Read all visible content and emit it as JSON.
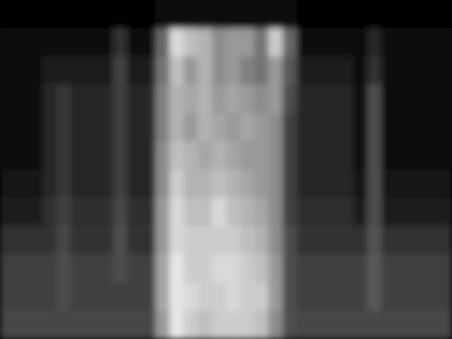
{
  "chart_data": {
    "type": "heatmap",
    "tick_labels": false,
    "zlim": [
      0,
      1
    ],
    "cells": [
      [
        0.02,
        0.02,
        0.02,
        0.02,
        0.02,
        0.02,
        0.02,
        0.02,
        0.02,
        0.02,
        0.02,
        0.05,
        0.05,
        0.05,
        0.05,
        0.05,
        0.05,
        0.05,
        0.05,
        0.05,
        0.05,
        0.02,
        0.02,
        0.02,
        0.02,
        0.02,
        0.02,
        0.02,
        0.02,
        0.02,
        0.02,
        0.02
      ],
      [
        0.03,
        0.03,
        0.03,
        0.03,
        0.03,
        0.03,
        0.03,
        0.03,
        0.2,
        0.03,
        0.03,
        0.4,
        0.85,
        0.75,
        0.7,
        0.55,
        0.6,
        0.6,
        0.45,
        0.8,
        0.4,
        0.03,
        0.03,
        0.03,
        0.03,
        0.03,
        0.15,
        0.03,
        0.03,
        0.03,
        0.03,
        0.03
      ],
      [
        0.05,
        0.05,
        0.05,
        0.1,
        0.1,
        0.1,
        0.1,
        0.1,
        0.25,
        0.1,
        0.1,
        0.45,
        0.75,
        0.6,
        0.7,
        0.55,
        0.6,
        0.5,
        0.45,
        0.6,
        0.35,
        0.1,
        0.1,
        0.1,
        0.1,
        0.05,
        0.2,
        0.05,
        0.05,
        0.05,
        0.05,
        0.05
      ],
      [
        0.06,
        0.06,
        0.06,
        0.15,
        0.22,
        0.15,
        0.15,
        0.15,
        0.25,
        0.15,
        0.15,
        0.5,
        0.7,
        0.65,
        0.7,
        0.6,
        0.65,
        0.6,
        0.55,
        0.6,
        0.3,
        0.15,
        0.15,
        0.15,
        0.15,
        0.06,
        0.3,
        0.06,
        0.06,
        0.06,
        0.06,
        0.06
      ],
      [
        0.06,
        0.06,
        0.06,
        0.15,
        0.22,
        0.15,
        0.15,
        0.15,
        0.25,
        0.15,
        0.15,
        0.5,
        0.7,
        0.6,
        0.7,
        0.65,
        0.6,
        0.65,
        0.6,
        0.55,
        0.25,
        0.15,
        0.15,
        0.15,
        0.15,
        0.06,
        0.3,
        0.06,
        0.06,
        0.06,
        0.06,
        0.06
      ],
      [
        0.06,
        0.06,
        0.06,
        0.15,
        0.22,
        0.15,
        0.15,
        0.15,
        0.25,
        0.15,
        0.15,
        0.55,
        0.75,
        0.7,
        0.65,
        0.7,
        0.65,
        0.6,
        0.6,
        0.55,
        0.25,
        0.15,
        0.15,
        0.15,
        0.15,
        0.06,
        0.3,
        0.06,
        0.06,
        0.06,
        0.06,
        0.06
      ],
      [
        0.08,
        0.08,
        0.08,
        0.15,
        0.22,
        0.15,
        0.15,
        0.15,
        0.25,
        0.15,
        0.15,
        0.55,
        0.8,
        0.7,
        0.7,
        0.75,
        0.7,
        0.65,
        0.6,
        0.55,
        0.25,
        0.15,
        0.15,
        0.15,
        0.15,
        0.08,
        0.3,
        0.08,
        0.08,
        0.08,
        0.08,
        0.08
      ],
      [
        0.1,
        0.1,
        0.1,
        0.18,
        0.25,
        0.18,
        0.18,
        0.18,
        0.28,
        0.18,
        0.18,
        0.6,
        0.85,
        0.75,
        0.75,
        0.85,
        0.75,
        0.7,
        0.65,
        0.55,
        0.25,
        0.18,
        0.18,
        0.18,
        0.18,
        0.1,
        0.3,
        0.1,
        0.1,
        0.1,
        0.1,
        0.1
      ],
      [
        0.2,
        0.2,
        0.2,
        0.2,
        0.28,
        0.2,
        0.2,
        0.2,
        0.3,
        0.2,
        0.2,
        0.6,
        0.85,
        0.8,
        0.8,
        0.8,
        0.8,
        0.75,
        0.7,
        0.55,
        0.3,
        0.2,
        0.2,
        0.2,
        0.2,
        0.2,
        0.32,
        0.2,
        0.2,
        0.2,
        0.2,
        0.2
      ],
      [
        0.25,
        0.25,
        0.25,
        0.25,
        0.3,
        0.25,
        0.25,
        0.25,
        0.3,
        0.25,
        0.25,
        0.65,
        0.9,
        0.8,
        0.8,
        0.85,
        0.85,
        0.8,
        0.75,
        0.6,
        0.3,
        0.25,
        0.25,
        0.25,
        0.25,
        0.25,
        0.35,
        0.25,
        0.25,
        0.25,
        0.25,
        0.25
      ],
      [
        0.25,
        0.25,
        0.25,
        0.25,
        0.3,
        0.25,
        0.25,
        0.25,
        0.25,
        0.25,
        0.25,
        0.65,
        0.9,
        0.85,
        0.8,
        0.8,
        0.85,
        0.8,
        0.8,
        0.6,
        0.3,
        0.25,
        0.25,
        0.25,
        0.25,
        0.25,
        0.35,
        0.25,
        0.25,
        0.25,
        0.25,
        0.25
      ],
      [
        0.28,
        0.28,
        0.28,
        0.28,
        0.28,
        0.28,
        0.28,
        0.28,
        0.28,
        0.28,
        0.28,
        0.6,
        0.9,
        0.8,
        0.75,
        0.8,
        0.8,
        0.8,
        0.75,
        0.55,
        0.3,
        0.28,
        0.28,
        0.28,
        0.28,
        0.28,
        0.28,
        0.28,
        0.28,
        0.28,
        0.28,
        0.28
      ]
    ]
  }
}
